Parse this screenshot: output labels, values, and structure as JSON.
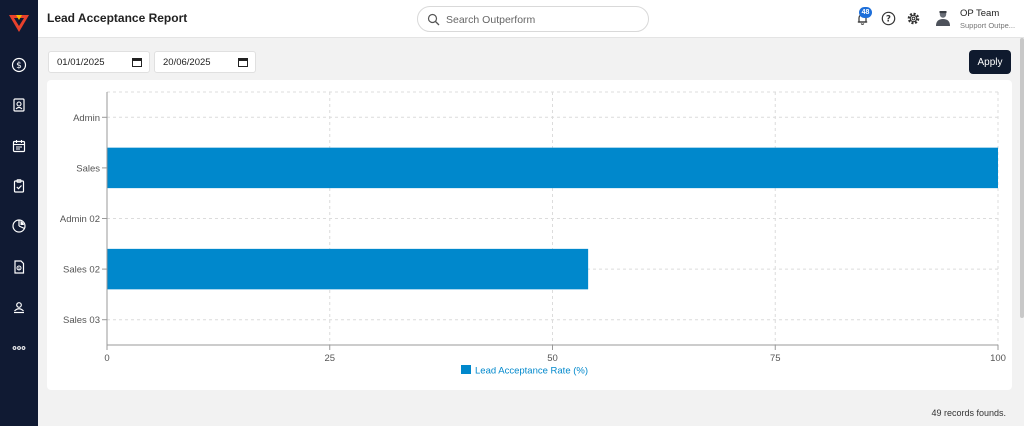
{
  "header": {
    "title": "Lead Acceptance Report",
    "search_placeholder": "Search Outperform",
    "notification_count": "48",
    "user_name": "OP Team",
    "user_role": "Support Outpe..."
  },
  "filters": {
    "start_date": "01/01/2025",
    "end_date": "20/06/2025",
    "apply_label": "Apply"
  },
  "sidebar": {
    "items": [
      {
        "icon": "dollar-icon"
      },
      {
        "icon": "contact-card-icon"
      },
      {
        "icon": "calendar-icon"
      },
      {
        "icon": "clipboard-check-icon"
      },
      {
        "icon": "pie-chart-icon"
      },
      {
        "icon": "document-icon"
      },
      {
        "icon": "user-network-icon"
      },
      {
        "icon": "more-icon"
      }
    ]
  },
  "footer": {
    "records_text": "49 records founds."
  },
  "colors": {
    "bar": "#0088cc",
    "sidebar": "#101a33",
    "accent": "#e8412c"
  },
  "chart_data": {
    "type": "bar",
    "orientation": "horizontal",
    "categories": [
      "Admin",
      "Sales",
      "Admin 02",
      "Sales 02",
      "Sales 03"
    ],
    "series": [
      {
        "name": "Lead Acceptance Rate (%)",
        "values": [
          0,
          100,
          0,
          54,
          0
        ]
      }
    ],
    "xlim": [
      0,
      100
    ],
    "xticks": [
      0,
      25,
      50,
      75,
      100
    ],
    "grid": true,
    "legend": "bottom"
  }
}
